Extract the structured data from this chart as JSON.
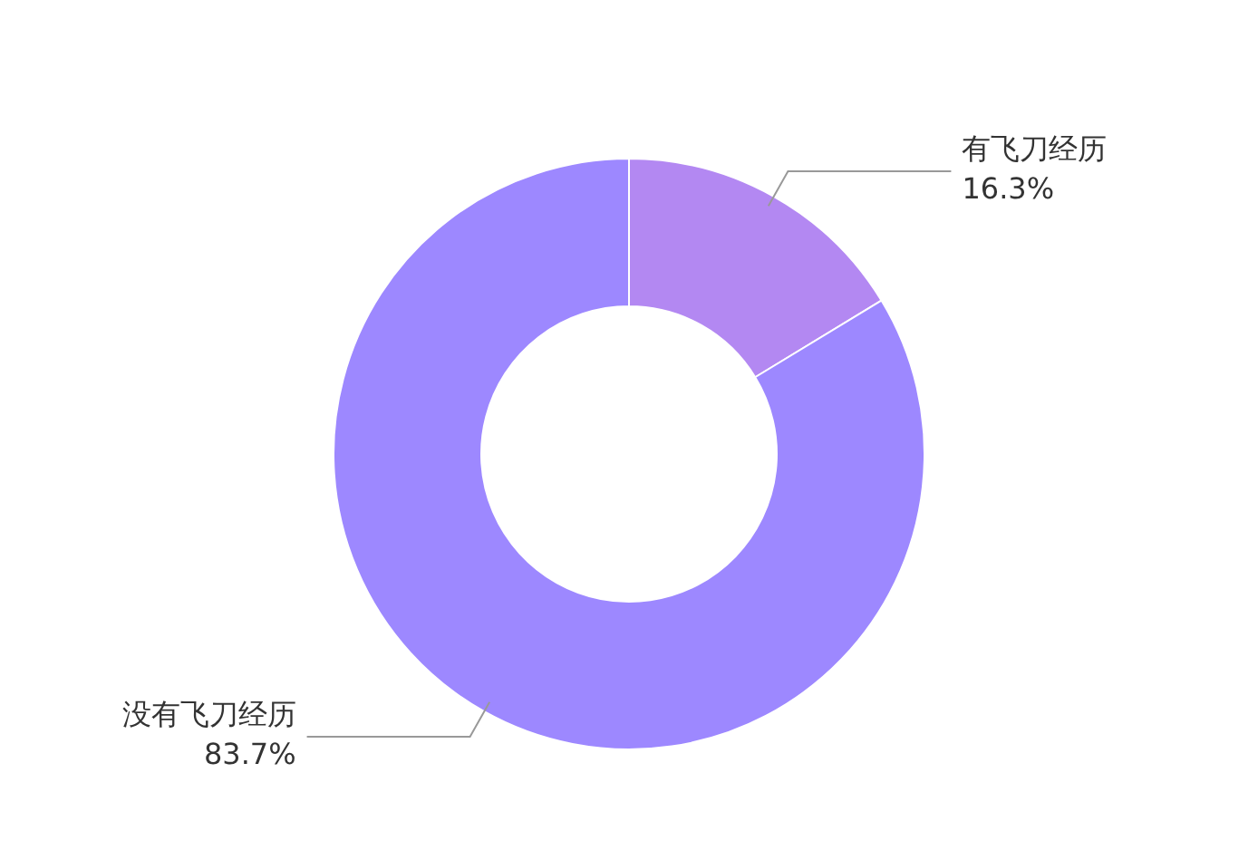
{
  "chart_data": {
    "type": "donut",
    "categories": [
      "有飞刀经历",
      "没有飞刀经历"
    ],
    "values": [
      16.3,
      83.7
    ],
    "value_labels": [
      "16.3%",
      "83.7%"
    ],
    "colors": [
      "#b388f2",
      "#9d88ff"
    ],
    "legend": false
  }
}
